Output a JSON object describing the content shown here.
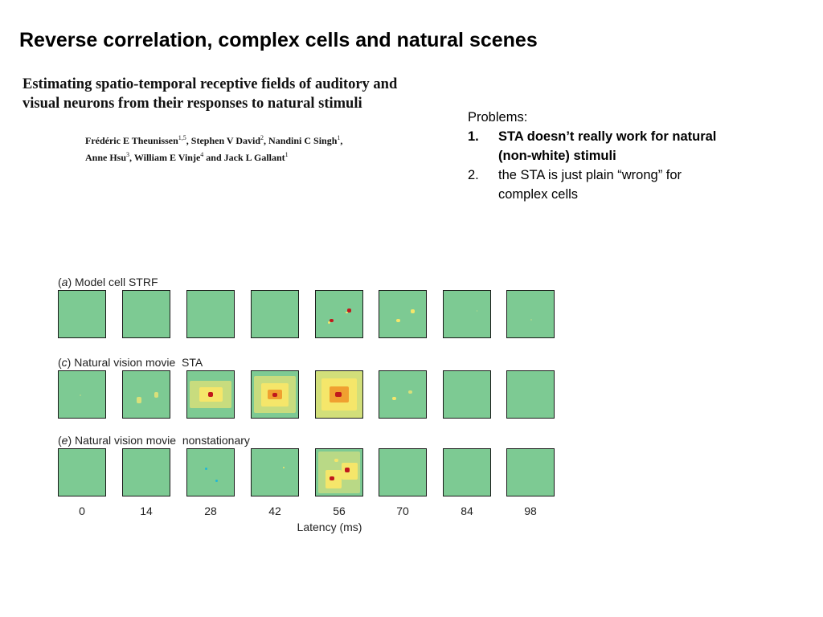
{
  "slide": {
    "title": "Reverse correlation, complex cells and natural scenes"
  },
  "paper": {
    "title": "Estimating spatio-temporal receptive fields of auditory and visual neurons from their responses to natural stimuli",
    "authors": [
      {
        "name": "Frédéric E Theunissen",
        "aff": "1,5"
      },
      {
        "name": "Stephen V David",
        "aff": "2"
      },
      {
        "name": "Nandini C Singh",
        "aff": "1"
      },
      {
        "name": "Anne Hsu",
        "aff": "3"
      },
      {
        "name": "William E Vinje",
        "aff": "4"
      },
      {
        "name": "Jack L Gallant",
        "aff": "1"
      }
    ]
  },
  "problems": {
    "heading": "Problems:",
    "items": [
      {
        "num": "1.",
        "text": "STA doesn’t really work for natural (non-white) stimuli",
        "bold": true
      },
      {
        "num": "2.",
        "text": "the STA is just plain “wrong” for complex cells",
        "bold": false
      }
    ]
  },
  "figure": {
    "panels": [
      {
        "letter": "a",
        "label": "Model cell STRF"
      },
      {
        "letter": "c",
        "label": "Natural vision movie  STA"
      },
      {
        "letter": "e",
        "label": "Natural vision movie  nonstationary"
      }
    ],
    "latency_ticks": [
      "0",
      "14",
      "28",
      "42",
      "56",
      "70",
      "84",
      "98"
    ],
    "xlabel": "Latency (ms)",
    "colors": {
      "background": "#7dca93",
      "positive_low": "#f5e66a",
      "positive_mid": "#f0a030",
      "positive_high": "#c0181c",
      "negative": "#1fb8d8"
    }
  }
}
